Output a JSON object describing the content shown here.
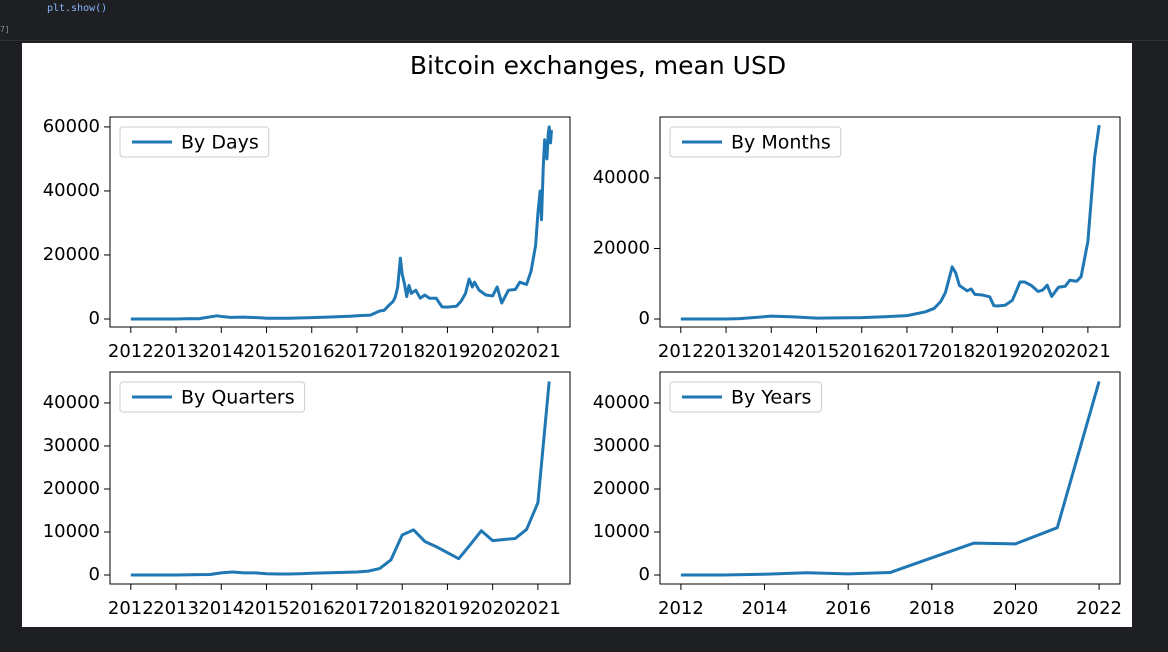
{
  "cell_label": "7]",
  "code": "plt.show()",
  "figure": {
    "title": "Bitcoin exchanges, mean USD"
  },
  "chart_data": [
    {
      "type": "line",
      "series": [
        {
          "name": "By Days",
          "color": "#1f77b4",
          "x": [
            2012.0,
            2012.5,
            2013.0,
            2013.3,
            2013.5,
            2013.9,
            2014.0,
            2014.2,
            2014.5,
            2014.9,
            2015.0,
            2015.5,
            2015.9,
            2016.0,
            2016.5,
            2016.9,
            2017.0,
            2017.3,
            2017.5,
            2017.6,
            2017.7,
            2017.8,
            2017.85,
            2017.9,
            2017.96,
            2018.0,
            2018.05,
            2018.1,
            2018.15,
            2018.2,
            2018.3,
            2018.4,
            2018.5,
            2018.6,
            2018.75,
            2018.88,
            2019.0,
            2019.2,
            2019.3,
            2019.4,
            2019.48,
            2019.55,
            2019.6,
            2019.7,
            2019.85,
            2020.0,
            2020.1,
            2020.2,
            2020.35,
            2020.5,
            2020.6,
            2020.75,
            2020.85,
            2020.95,
            2021.0,
            2021.05,
            2021.08,
            2021.12,
            2021.15,
            2021.2,
            2021.23,
            2021.25,
            2021.28,
            2021.3
          ],
          "values": [
            5,
            7,
            13,
            120,
            90,
            1000,
            800,
            500,
            600,
            350,
            250,
            250,
            400,
            430,
            650,
            900,
            1000,
            1200,
            2500,
            2700,
            4200,
            5500,
            7000,
            10000,
            19000,
            14000,
            11000,
            7000,
            10500,
            8000,
            9000,
            6500,
            7500,
            6500,
            6500,
            3800,
            3700,
            4000,
            5500,
            8000,
            12500,
            10000,
            11500,
            9000,
            7500,
            7200,
            10000,
            5000,
            9000,
            9200,
            11500,
            10800,
            15000,
            23000,
            33000,
            40000,
            31000,
            48000,
            56000,
            50000,
            58000,
            60000,
            55000,
            59000
          ]
        }
      ],
      "xlim": [
        2011.54,
        2021.71
      ],
      "ylim": [
        -2500,
        63100
      ],
      "xticks": [
        2012,
        2013,
        2014,
        2015,
        2016,
        2017,
        2018,
        2019,
        2020,
        2021
      ],
      "yticks": [
        0,
        20000,
        40000,
        60000
      ],
      "legend": "upper left"
    },
    {
      "type": "line",
      "series": [
        {
          "name": "By Months",
          "color": "#1f77b4",
          "x": [
            2012.0,
            2013.0,
            2013.3,
            2013.9,
            2014.0,
            2014.5,
            2015.0,
            2016.0,
            2016.5,
            2017.0,
            2017.4,
            2017.6,
            2017.75,
            2017.85,
            2018.0,
            2018.08,
            2018.16,
            2018.33,
            2018.42,
            2018.5,
            2018.67,
            2018.83,
            2018.92,
            2019.0,
            2019.17,
            2019.33,
            2019.42,
            2019.5,
            2019.6,
            2019.75,
            2019.9,
            2020.0,
            2020.1,
            2020.2,
            2020.35,
            2020.5,
            2020.6,
            2020.75,
            2020.85,
            2021.0,
            2021.15,
            2021.25
          ],
          "values": [
            5,
            13,
            110,
            700,
            800,
            600,
            250,
            400,
            650,
            950,
            2000,
            3000,
            5000,
            7500,
            14800,
            13000,
            9500,
            8000,
            8500,
            7000,
            6800,
            6300,
            3800,
            3700,
            3900,
            5300,
            8000,
            10500,
            10500,
            9500,
            7800,
            8200,
            9600,
            6400,
            9000,
            9300,
            11000,
            10700,
            12000,
            22000,
            46000,
            55000
          ]
        }
      ],
      "xlim": [
        2011.54,
        2021.71
      ],
      "ylim": [
        -2270,
        57300
      ],
      "xticks": [
        2012,
        2013,
        2014,
        2015,
        2016,
        2017,
        2018,
        2019,
        2020,
        2021
      ],
      "yticks": [
        0,
        20000,
        40000
      ],
      "legend": "upper left"
    },
    {
      "type": "line",
      "series": [
        {
          "name": "By Quarters",
          "color": "#1f77b4",
          "x": [
            2012.0,
            2012.5,
            2013.0,
            2013.5,
            2013.75,
            2014.0,
            2014.25,
            2014.5,
            2014.75,
            2015.0,
            2015.25,
            2015.5,
            2015.75,
            2016.0,
            2016.5,
            2017.0,
            2017.25,
            2017.5,
            2017.75,
            2018.0,
            2018.25,
            2018.5,
            2018.75,
            2019.25,
            2019.5,
            2019.75,
            2020.0,
            2020.5,
            2020.75,
            2021.0,
            2021.25
          ],
          "values": [
            5,
            5,
            13,
            100,
            120,
            500,
            700,
            500,
            500,
            300,
            250,
            250,
            300,
            400,
            550,
            700,
            900,
            1500,
            3500,
            9300,
            10500,
            7800,
            6600,
            3800,
            7000,
            10300,
            8000,
            8500,
            10600,
            16800,
            45000
          ]
        }
      ],
      "xlim": [
        2011.54,
        2021.71
      ],
      "ylim": [
        -2090,
        47200
      ],
      "xticks": [
        2012,
        2013,
        2014,
        2015,
        2016,
        2017,
        2018,
        2019,
        2020,
        2021
      ],
      "yticks": [
        0,
        10000,
        20000,
        30000,
        40000
      ],
      "legend": "upper left"
    },
    {
      "type": "line",
      "series": [
        {
          "name": "By Years",
          "color": "#1f77b4",
          "x": [
            2012,
            2013,
            2014,
            2015,
            2016,
            2017,
            2018,
            2019,
            2020,
            2021,
            2022
          ],
          "values": [
            5,
            13,
            190,
            530,
            270,
            570,
            4000,
            7400,
            7250,
            11000,
            45000
          ]
        }
      ],
      "xlim": [
        2011.5,
        2022.5
      ],
      "ylim": [
        -2090,
        47200
      ],
      "xticks": [
        2012,
        2014,
        2016,
        2018,
        2020,
        2022
      ],
      "yticks": [
        0,
        10000,
        20000,
        30000,
        40000
      ],
      "legend": "upper left"
    }
  ]
}
